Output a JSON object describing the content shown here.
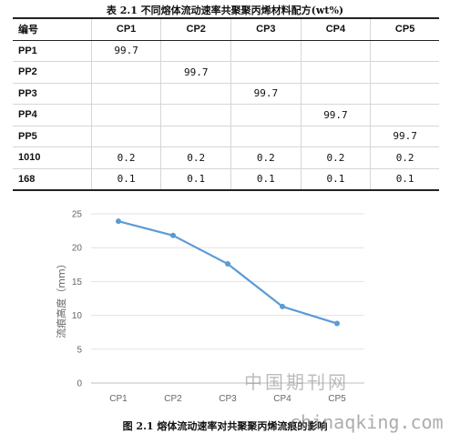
{
  "table": {
    "caption": "表 2.1 不同熔体流动速率共聚聚丙烯材料配方(wt%)",
    "headers": [
      "编号",
      "CP1",
      "CP2",
      "CP3",
      "CP4",
      "CP5"
    ],
    "rows": [
      {
        "name": "PP1",
        "cells": [
          "99.7",
          "",
          "",
          "",
          ""
        ]
      },
      {
        "name": "PP2",
        "cells": [
          "",
          "99.7",
          "",
          "",
          ""
        ]
      },
      {
        "name": "PP3",
        "cells": [
          "",
          "",
          "99.7",
          "",
          ""
        ]
      },
      {
        "name": "PP4",
        "cells": [
          "",
          "",
          "",
          "99.7",
          ""
        ]
      },
      {
        "name": "PP5",
        "cells": [
          "",
          "",
          "",
          "",
          "99.7"
        ]
      },
      {
        "name": "1010",
        "cells": [
          "0.2",
          "0.2",
          "0.2",
          "0.2",
          "0.2"
        ]
      },
      {
        "name": "168",
        "cells": [
          "0.1",
          "0.1",
          "0.1",
          "0.1",
          "0.1"
        ]
      }
    ]
  },
  "chart_data": {
    "type": "line",
    "categories": [
      "CP1",
      "CP2",
      "CP3",
      "CP4",
      "CP5"
    ],
    "series": [
      {
        "values": [
          23.9,
          21.8,
          17.6,
          11.3,
          8.8
        ]
      }
    ],
    "title": "",
    "xlabel": "",
    "ylabel": "流痕高度（mm）",
    "ylim": [
      0,
      25
    ],
    "yticks": [
      0,
      5,
      10,
      15,
      20,
      25
    ],
    "grid": true,
    "legend": "none",
    "line_color": "#5b9bd5"
  },
  "figure_caption": "图 2.1 熔体流动速率对共聚聚丙烯流痕的影响",
  "watermark": {
    "text": "中国期刊网",
    "url": "chinaqking.com"
  }
}
